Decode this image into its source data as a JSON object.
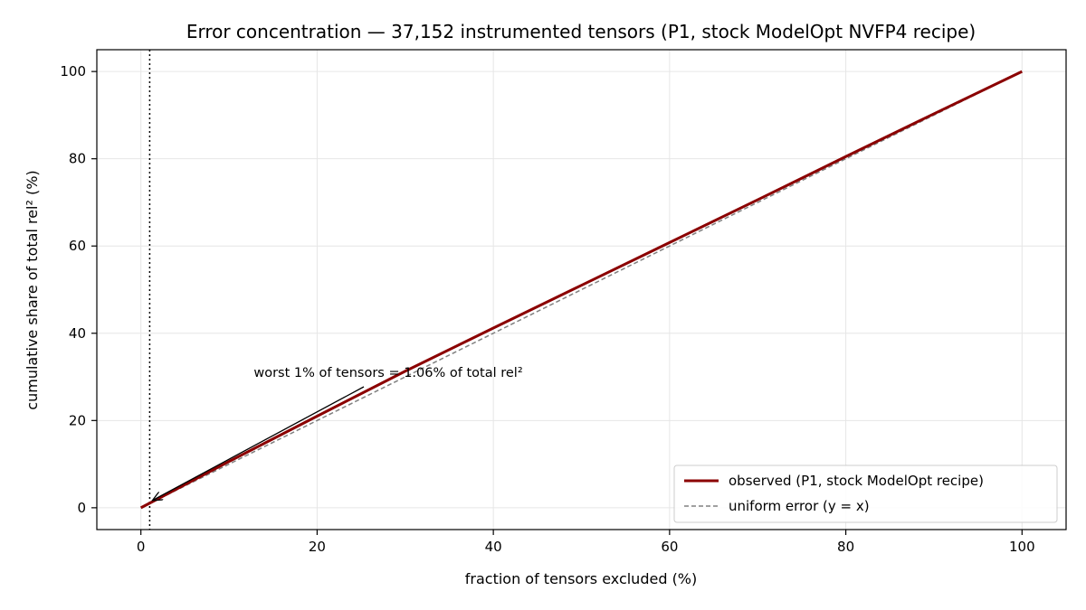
{
  "chart_data": {
    "type": "line",
    "title": "Error concentration — 37,152 instrumented tensors (P1, stock ModelOpt NVFP4 recipe)",
    "xlabel": "fraction of tensors excluded (%)",
    "ylabel": "cumulative share of total rel² (%)",
    "xlim": [
      -5,
      105
    ],
    "ylim": [
      -5,
      105
    ],
    "xticks": [
      0,
      20,
      40,
      60,
      80,
      100
    ],
    "yticks": [
      0,
      20,
      40,
      60,
      80,
      100
    ],
    "grid": true,
    "legend_position": "lower-right",
    "series": [
      {
        "name": "observed (P1, stock ModelOpt recipe)",
        "color": "#8b0000",
        "style": "solid",
        "x": [
          0,
          1,
          5,
          10,
          20,
          30,
          40,
          50,
          60,
          70,
          80,
          90,
          100
        ],
        "y": [
          0,
          1.06,
          5.3,
          10.6,
          21.0,
          31.3,
          41.2,
          51.0,
          60.8,
          70.6,
          80.5,
          90.3,
          100
        ]
      },
      {
        "name": "uniform error (y = x)",
        "color": "#808080",
        "style": "dashed",
        "x": [
          0,
          100
        ],
        "y": [
          0,
          100
        ]
      }
    ],
    "vline": {
      "x": 1,
      "style": "dotted",
      "color": "#000000"
    },
    "annotation": {
      "text": "worst 1% of tensors = 1.06% of total rel²",
      "point": [
        1,
        1.06
      ]
    }
  }
}
